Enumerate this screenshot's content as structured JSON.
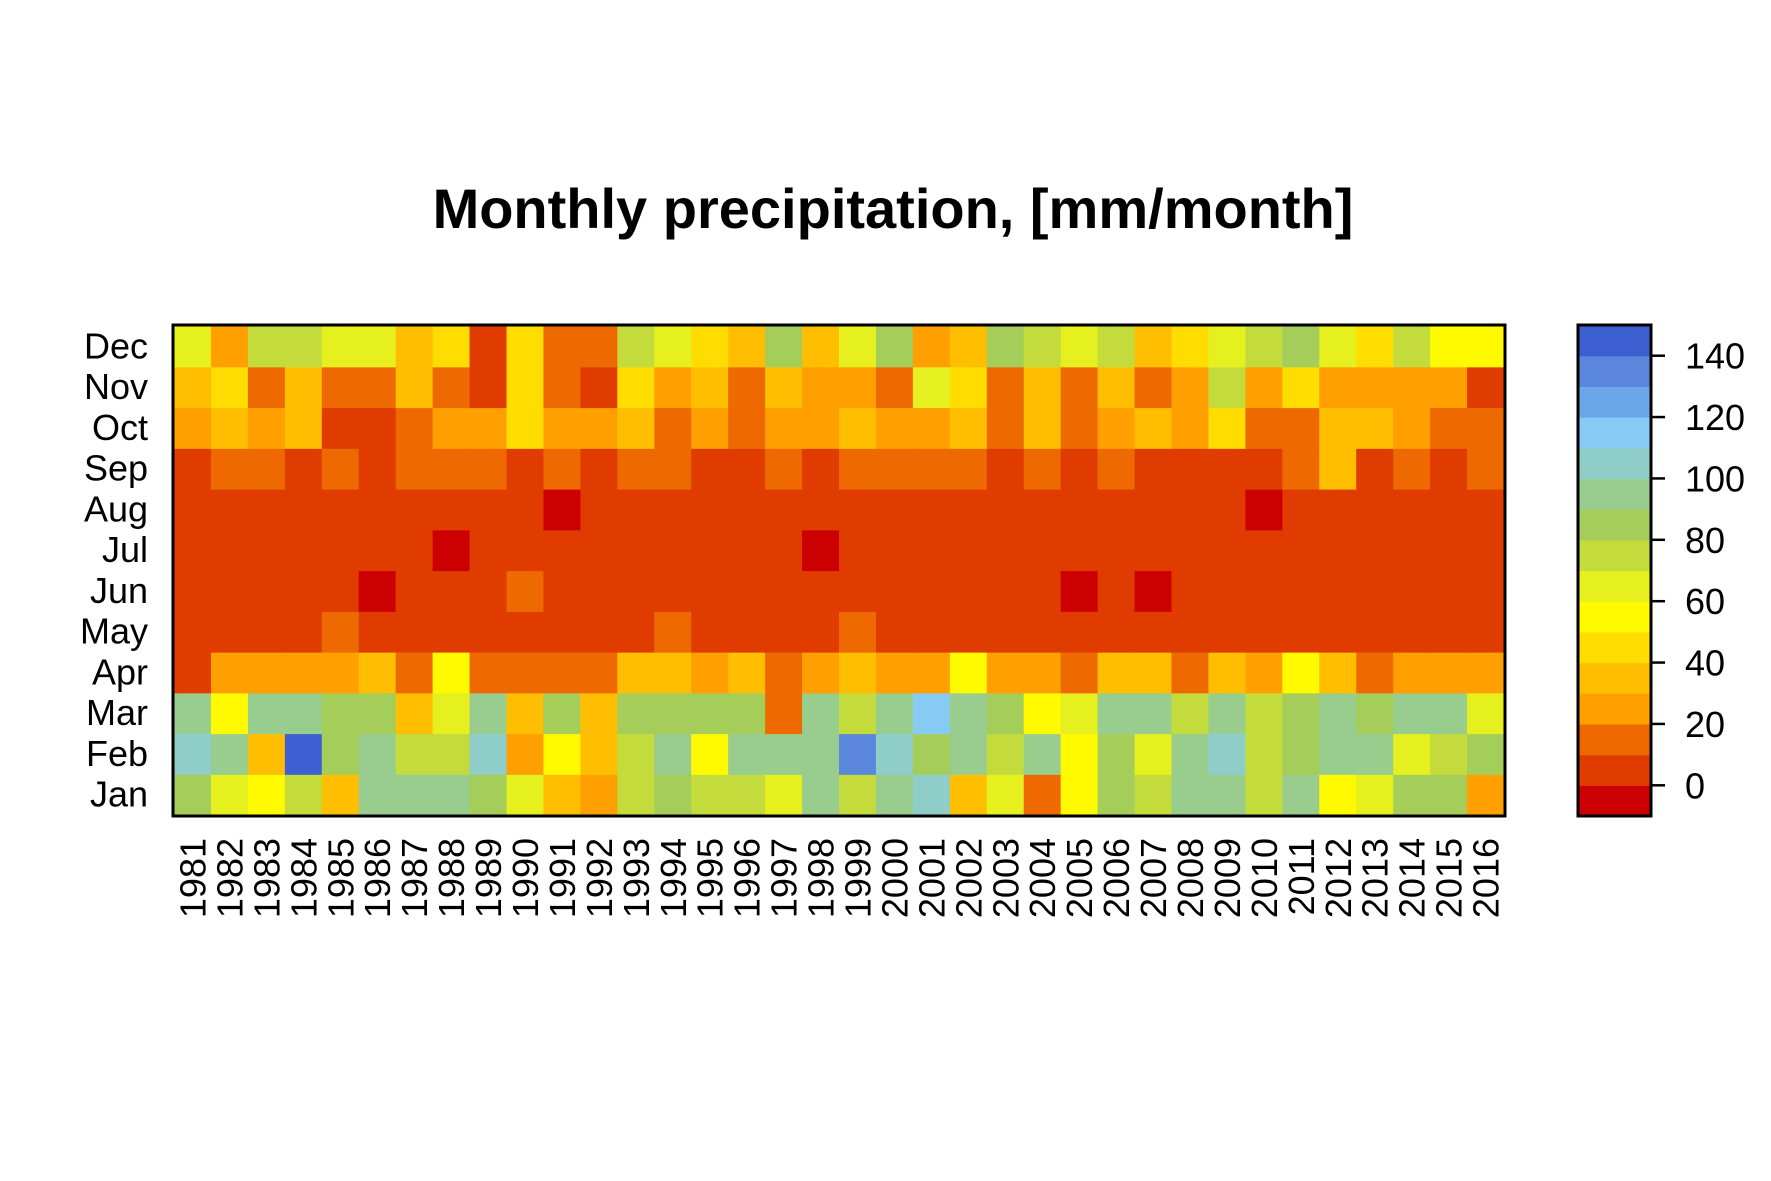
{
  "chart_data": {
    "type": "heatmap",
    "title": "Monthly precipitation, [mm/month]",
    "xlabel": "",
    "ylabel": "",
    "x_categories": [
      "1981",
      "1982",
      "1983",
      "1984",
      "1985",
      "1986",
      "1987",
      "1988",
      "1989",
      "1990",
      "1991",
      "1992",
      "1993",
      "1994",
      "1995",
      "1996",
      "1997",
      "1998",
      "1999",
      "2000",
      "2001",
      "2002",
      "2003",
      "2004",
      "2005",
      "2006",
      "2007",
      "2008",
      "2009",
      "2010",
      "2011",
      "2012",
      "2013",
      "2014",
      "2015",
      "2016"
    ],
    "y_categories": [
      "Jan",
      "Feb",
      "Mar",
      "Apr",
      "May",
      "Jun",
      "Jul",
      "Aug",
      "Sep",
      "Oct",
      "Nov",
      "Dec"
    ],
    "values": [
      [
        85,
        65,
        55,
        75,
        35,
        95,
        95,
        90,
        85,
        65,
        35,
        25,
        75,
        85,
        75,
        75,
        65,
        95,
        75,
        95,
        105,
        35,
        65,
        15,
        55,
        85,
        75,
        95,
        90,
        75,
        95,
        55,
        65,
        85,
        85,
        25
      ],
      [
        105,
        95,
        35,
        145,
        85,
        90,
        75,
        75,
        105,
        25,
        55,
        30,
        75,
        90,
        55,
        90,
        90,
        90,
        135,
        105,
        85,
        90,
        75,
        90,
        55,
        85,
        65,
        95,
        105,
        75,
        85,
        95,
        95,
        65,
        75,
        85
      ],
      [
        90,
        55,
        90,
        90,
        85,
        85,
        35,
        65,
        95,
        35,
        85,
        35,
        85,
        85,
        85,
        85,
        15,
        90,
        75,
        90,
        115,
        90,
        85,
        55,
        65,
        95,
        95,
        75,
        90,
        75,
        85,
        90,
        85,
        95,
        90,
        65
      ],
      [
        5,
        25,
        25,
        25,
        25,
        35,
        15,
        55,
        15,
        15,
        15,
        15,
        35,
        35,
        25,
        35,
        15,
        25,
        35,
        25,
        25,
        55,
        25,
        25,
        15,
        35,
        35,
        15,
        35,
        25,
        55,
        35,
        15,
        25,
        25,
        25
      ],
      [
        5,
        5,
        5,
        5,
        15,
        5,
        5,
        5,
        5,
        5,
        5,
        5,
        5,
        15,
        5,
        5,
        5,
        5,
        15,
        5,
        5,
        5,
        5,
        5,
        5,
        5,
        5,
        5,
        5,
        5,
        5,
        5,
        5,
        5,
        5,
        5
      ],
      [
        5,
        5,
        5,
        5,
        5,
        -5,
        5,
        5,
        5,
        15,
        5,
        5,
        5,
        5,
        5,
        5,
        5,
        5,
        5,
        5,
        5,
        5,
        5,
        5,
        -5,
        5,
        -5,
        5,
        5,
        5,
        5,
        5,
        5,
        5,
        5,
        5
      ],
      [
        5,
        5,
        5,
        5,
        5,
        5,
        5,
        -5,
        5,
        5,
        5,
        5,
        5,
        5,
        5,
        5,
        5,
        -5,
        5,
        5,
        5,
        5,
        5,
        5,
        5,
        5,
        5,
        5,
        5,
        5,
        5,
        5,
        5,
        5,
        5,
        5
      ],
      [
        5,
        5,
        5,
        5,
        5,
        5,
        5,
        5,
        5,
        5,
        -5,
        5,
        5,
        5,
        5,
        5,
        5,
        5,
        5,
        5,
        5,
        5,
        5,
        5,
        5,
        5,
        5,
        5,
        5,
        -5,
        5,
        5,
        5,
        5,
        5,
        5
      ],
      [
        5,
        15,
        15,
        5,
        15,
        5,
        15,
        15,
        15,
        5,
        15,
        5,
        15,
        15,
        5,
        5,
        15,
        5,
        15,
        15,
        15,
        15,
        5,
        15,
        5,
        15,
        5,
        5,
        5,
        5,
        15,
        35,
        5,
        15,
        5,
        15
      ],
      [
        25,
        35,
        25,
        35,
        5,
        5,
        15,
        25,
        25,
        45,
        25,
        25,
        35,
        15,
        25,
        15,
        25,
        25,
        35,
        25,
        25,
        35,
        15,
        35,
        15,
        25,
        35,
        25,
        45,
        15,
        15,
        35,
        35,
        25,
        15,
        15
      ],
      [
        35,
        45,
        15,
        35,
        15,
        15,
        35,
        15,
        5,
        45,
        15,
        5,
        45,
        25,
        35,
        15,
        35,
        25,
        25,
        15,
        65,
        45,
        15,
        35,
        15,
        35,
        15,
        25,
        75,
        25,
        45,
        25,
        25,
        25,
        25,
        5
      ],
      [
        65,
        25,
        75,
        75,
        65,
        65,
        35,
        45,
        5,
        45,
        15,
        15,
        75,
        65,
        45,
        35,
        85,
        35,
        65,
        85,
        25,
        35,
        85,
        75,
        65,
        75,
        35,
        45,
        65,
        75,
        85,
        65,
        45,
        75,
        55,
        55
      ]
    ],
    "color_scale": {
      "min": -10,
      "step": 10,
      "colors": [
        "#CC0000",
        "#E03C00",
        "#EE6A00",
        "#FF9F00",
        "#FFBE00",
        "#FFDD00",
        "#FFFA00",
        "#E6F01E",
        "#C3DC3C",
        "#A5CD5A",
        "#98CD8E",
        "#8ECDC8",
        "#87CBF5",
        "#6BA6E8",
        "#5A87DC",
        "#3C5FD2"
      ],
      "ticks": [
        0,
        20,
        40,
        60,
        80,
        100,
        120,
        140
      ]
    }
  }
}
